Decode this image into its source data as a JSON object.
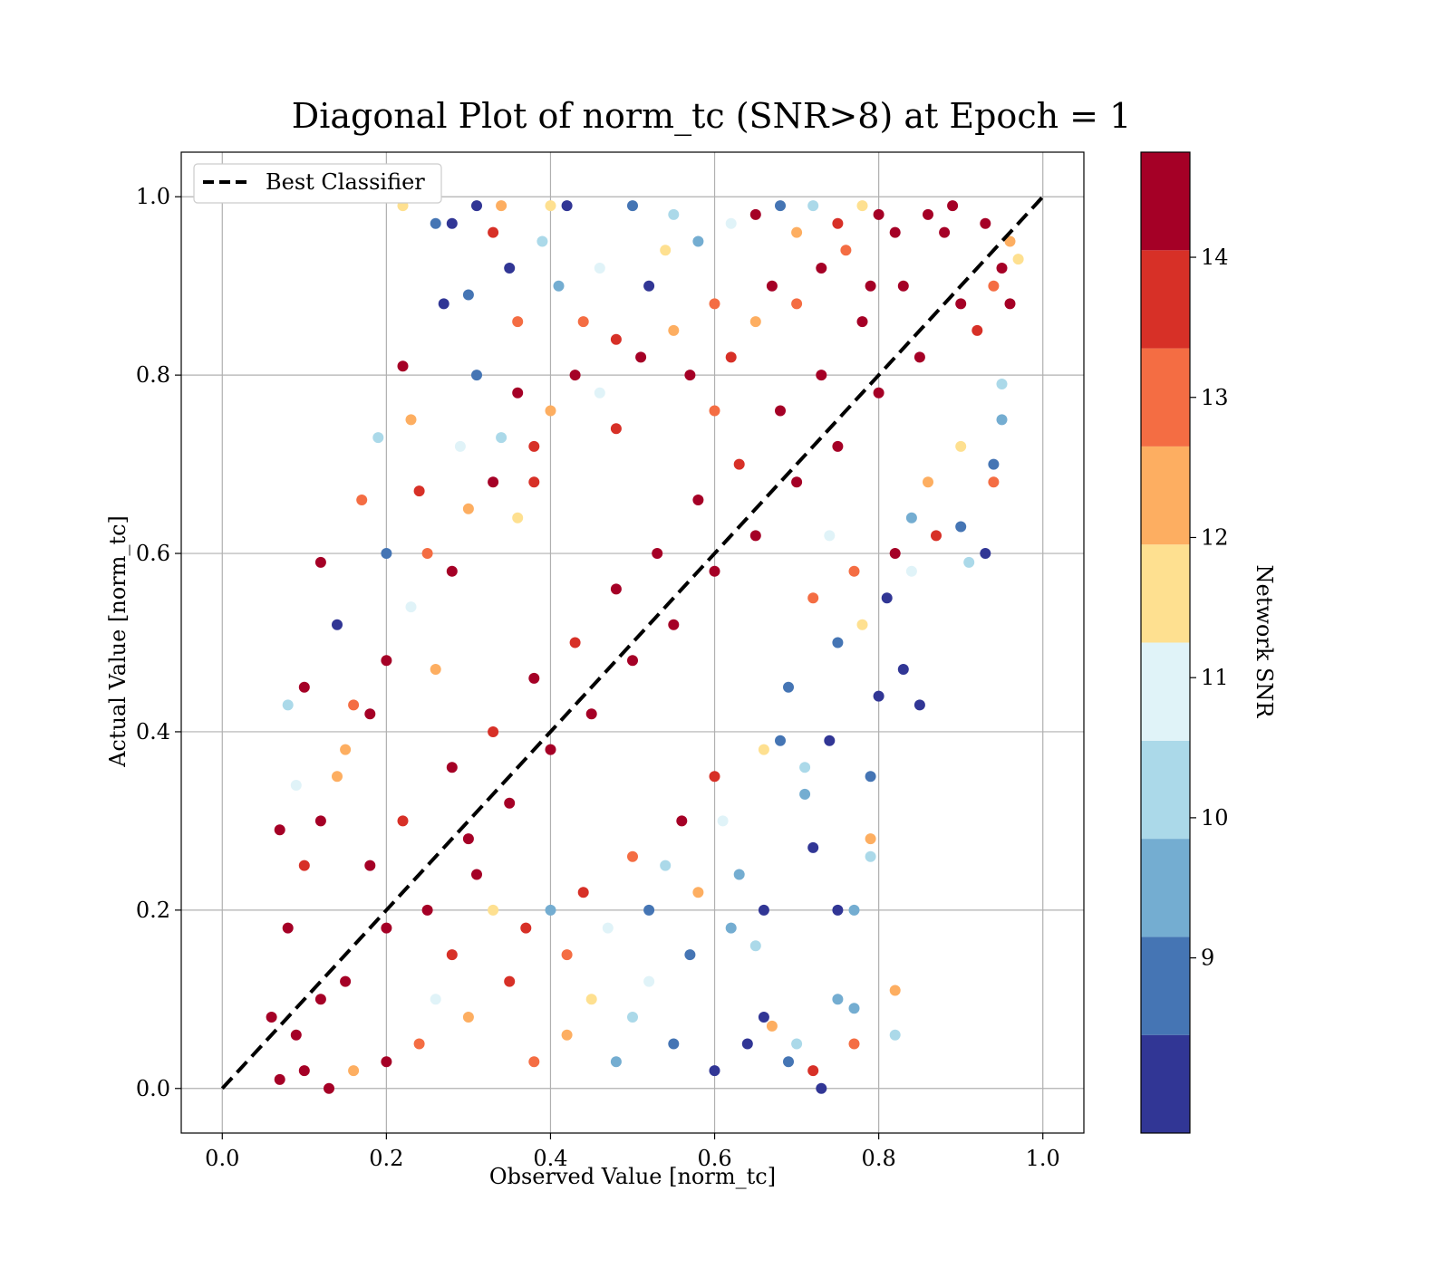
{
  "chart_data": {
    "type": "scatter",
    "title": "Diagonal Plot of norm_tc (SNR>8) at Epoch = 1",
    "xlabel": "Observed Value [norm_tc]",
    "ylabel": "Actual Value [norm_tc]",
    "xlim": [
      -0.05,
      1.05
    ],
    "ylim": [
      -0.05,
      1.05
    ],
    "xticks": [
      "0.0",
      "0.2",
      "0.4",
      "0.6",
      "0.8",
      "1.0"
    ],
    "yticks": [
      "0.0",
      "0.2",
      "0.4",
      "0.6",
      "0.8",
      "1.0"
    ],
    "xtick_values": [
      0,
      0.2,
      0.4,
      0.6,
      0.8,
      1.0
    ],
    "ytick_values": [
      0,
      0.2,
      0.4,
      0.6,
      0.8,
      1.0
    ],
    "grid": true,
    "legend": {
      "placement": "top-left",
      "entries": [
        "Best Classifier"
      ]
    },
    "reference_line": {
      "name": "Best Classifier",
      "x": [
        0,
        1
      ],
      "y": [
        0,
        1
      ],
      "style": "dashed",
      "color": "#000000"
    },
    "colorbar": {
      "label": "Network SNR",
      "range": [
        8,
        15
      ],
      "tick_labels": [
        "9",
        "10",
        "11",
        "12",
        "13",
        "14"
      ],
      "tick_values": [
        9.25,
        10.25,
        11.25,
        12.25,
        13.25,
        14.25
      ],
      "bands": [
        {
          "from": 8.0,
          "to": 8.7,
          "color": "#313695"
        },
        {
          "from": 8.7,
          "to": 9.4,
          "color": "#4575b4"
        },
        {
          "from": 9.4,
          "to": 10.1,
          "color": "#74add1"
        },
        {
          "from": 10.1,
          "to": 10.8,
          "color": "#abd9e9"
        },
        {
          "from": 10.8,
          "to": 11.5,
          "color": "#e0f3f8"
        },
        {
          "from": 11.5,
          "to": 12.2,
          "color": "#fee090"
        },
        {
          "from": 12.2,
          "to": 12.9,
          "color": "#fdae61"
        },
        {
          "from": 12.9,
          "to": 13.6,
          "color": "#f46d43"
        },
        {
          "from": 13.6,
          "to": 14.3,
          "color": "#d73027"
        },
        {
          "from": 14.3,
          "to": 15.0,
          "color": "#a50026"
        }
      ]
    },
    "points": [
      [
        0.1,
        0.02,
        14.8
      ],
      [
        0.12,
        0.1,
        14.6
      ],
      [
        0.09,
        0.06,
        14.9
      ],
      [
        0.15,
        0.12,
        14.7
      ],
      [
        0.2,
        0.18,
        14.8
      ],
      [
        0.18,
        0.25,
        14.5
      ],
      [
        0.25,
        0.2,
        14.9
      ],
      [
        0.22,
        0.3,
        14.0
      ],
      [
        0.3,
        0.28,
        14.8
      ],
      [
        0.28,
        0.36,
        14.6
      ],
      [
        0.35,
        0.32,
        14.9
      ],
      [
        0.33,
        0.4,
        14.2
      ],
      [
        0.4,
        0.38,
        14.8
      ],
      [
        0.38,
        0.46,
        14.7
      ],
      [
        0.45,
        0.42,
        14.9
      ],
      [
        0.43,
        0.5,
        13.9
      ],
      [
        0.5,
        0.48,
        14.8
      ],
      [
        0.48,
        0.56,
        14.6
      ],
      [
        0.55,
        0.52,
        14.9
      ],
      [
        0.53,
        0.6,
        14.4
      ],
      [
        0.6,
        0.58,
        14.8
      ],
      [
        0.58,
        0.66,
        14.7
      ],
      [
        0.65,
        0.62,
        14.9
      ],
      [
        0.63,
        0.7,
        14.1
      ],
      [
        0.7,
        0.68,
        14.8
      ],
      [
        0.68,
        0.76,
        14.6
      ],
      [
        0.75,
        0.72,
        14.9
      ],
      [
        0.73,
        0.8,
        14.3
      ],
      [
        0.8,
        0.78,
        14.8
      ],
      [
        0.78,
        0.86,
        14.7
      ],
      [
        0.85,
        0.82,
        14.9
      ],
      [
        0.83,
        0.9,
        14.5
      ],
      [
        0.9,
        0.88,
        14.8
      ],
      [
        0.88,
        0.96,
        14.6
      ],
      [
        0.93,
        0.97,
        14.9
      ],
      [
        0.95,
        0.92,
        14.7
      ],
      [
        0.96,
        0.95,
        12.3
      ],
      [
        0.97,
        0.93,
        11.8
      ],
      [
        0.94,
        0.9,
        13.2
      ],
      [
        0.92,
        0.85,
        14.0
      ],
      [
        0.12,
        0.59,
        14.8
      ],
      [
        0.1,
        0.45,
        14.6
      ],
      [
        0.08,
        0.43,
        10.4
      ],
      [
        0.07,
        0.29,
        14.9
      ],
      [
        0.09,
        0.34,
        10.8
      ],
      [
        0.19,
        0.73,
        10.3
      ],
      [
        0.22,
        0.81,
        14.8
      ],
      [
        0.23,
        0.75,
        12.5
      ],
      [
        0.27,
        0.88,
        8.3
      ],
      [
        0.3,
        0.89,
        9.0
      ],
      [
        0.31,
        0.99,
        8.4
      ],
      [
        0.33,
        0.96,
        13.7
      ],
      [
        0.34,
        0.99,
        12.8
      ],
      [
        0.28,
        0.97,
        8.5
      ],
      [
        0.26,
        0.97,
        9.1
      ],
      [
        0.39,
        0.95,
        10.6
      ],
      [
        0.4,
        0.99,
        11.6
      ],
      [
        0.35,
        0.92,
        8.5
      ],
      [
        0.36,
        0.86,
        13.4
      ],
      [
        0.42,
        0.99,
        8.2
      ],
      [
        0.5,
        0.99,
        9.0
      ],
      [
        0.55,
        0.98,
        10.4
      ],
      [
        0.22,
        0.99,
        11.8
      ],
      [
        0.18,
        0.42,
        14.9
      ],
      [
        0.14,
        0.52,
        8.4
      ],
      [
        0.15,
        0.38,
        12.6
      ],
      [
        0.2,
        0.6,
        9.2
      ],
      [
        0.17,
        0.66,
        13.0
      ],
      [
        0.24,
        0.67,
        14.2
      ],
      [
        0.26,
        0.47,
        12.3
      ],
      [
        0.31,
        0.8,
        9.3
      ],
      [
        0.29,
        0.72,
        11.0
      ],
      [
        0.36,
        0.78,
        14.8
      ],
      [
        0.34,
        0.73,
        10.2
      ],
      [
        0.38,
        0.68,
        13.8
      ],
      [
        0.41,
        0.9,
        9.7
      ],
      [
        0.44,
        0.86,
        12.9
      ],
      [
        0.46,
        0.92,
        10.9
      ],
      [
        0.48,
        0.84,
        14.1
      ],
      [
        0.52,
        0.9,
        8.6
      ],
      [
        0.54,
        0.94,
        12.1
      ],
      [
        0.58,
        0.95,
        9.9
      ],
      [
        0.6,
        0.88,
        13.3
      ],
      [
        0.62,
        0.97,
        11.2
      ],
      [
        0.65,
        0.98,
        14.7
      ],
      [
        0.68,
        0.99,
        8.9
      ],
      [
        0.7,
        0.96,
        12.7
      ],
      [
        0.72,
        0.99,
        10.1
      ],
      [
        0.75,
        0.97,
        13.6
      ],
      [
        0.78,
        0.99,
        11.9
      ],
      [
        0.8,
        0.98,
        14.3
      ],
      [
        0.6,
        0.02,
        8.3
      ],
      [
        0.55,
        0.05,
        9.1
      ],
      [
        0.5,
        0.08,
        10.4
      ],
      [
        0.45,
        0.1,
        11.6
      ],
      [
        0.42,
        0.06,
        12.5
      ],
      [
        0.38,
        0.03,
        13.2
      ],
      [
        0.35,
        0.12,
        14.0
      ],
      [
        0.3,
        0.08,
        12.8
      ],
      [
        0.28,
        0.15,
        13.6
      ],
      [
        0.48,
        0.03,
        9.8
      ],
      [
        0.52,
        0.12,
        10.9
      ],
      [
        0.57,
        0.15,
        8.7
      ],
      [
        0.62,
        0.18,
        9.5
      ],
      [
        0.66,
        0.08,
        8.4
      ],
      [
        0.7,
        0.05,
        10.2
      ],
      [
        0.73,
        0.0,
        8.6
      ],
      [
        0.75,
        0.1,
        9.4
      ],
      [
        0.77,
        0.09,
        10.0
      ],
      [
        0.82,
        0.06,
        10.6
      ],
      [
        0.82,
        0.11,
        12.6
      ],
      [
        0.77,
        0.05,
        13.4
      ],
      [
        0.72,
        0.02,
        14.1
      ],
      [
        0.69,
        0.03,
        9.0
      ],
      [
        0.64,
        0.05,
        8.5
      ],
      [
        0.67,
        0.07,
        12.7
      ],
      [
        0.85,
        0.43,
        8.4
      ],
      [
        0.83,
        0.47,
        8.5
      ],
      [
        0.8,
        0.44,
        8.2
      ],
      [
        0.79,
        0.35,
        9.3
      ],
      [
        0.79,
        0.28,
        12.4
      ],
      [
        0.79,
        0.26,
        10.4
      ],
      [
        0.75,
        0.2,
        8.5
      ],
      [
        0.77,
        0.2,
        10.0
      ],
      [
        0.72,
        0.27,
        8.3
      ],
      [
        0.71,
        0.33,
        9.4
      ],
      [
        0.74,
        0.39,
        8.4
      ],
      [
        0.71,
        0.36,
        10.5
      ],
      [
        0.68,
        0.39,
        9.3
      ],
      [
        0.66,
        0.38,
        12.0
      ],
      [
        0.69,
        0.45,
        8.7
      ],
      [
        0.72,
        0.55,
        13.1
      ],
      [
        0.75,
        0.5,
        9.1
      ],
      [
        0.78,
        0.52,
        11.7
      ],
      [
        0.81,
        0.55,
        8.6
      ],
      [
        0.84,
        0.58,
        10.9
      ],
      [
        0.87,
        0.62,
        13.8
      ],
      [
        0.9,
        0.63,
        9.2
      ],
      [
        0.93,
        0.6,
        8.3
      ],
      [
        0.91,
        0.59,
        10.2
      ],
      [
        0.94,
        0.7,
        8.7
      ],
      [
        0.95,
        0.75,
        9.6
      ],
      [
        0.95,
        0.79,
        10.5
      ],
      [
        0.96,
        0.88,
        14.9
      ],
      [
        0.94,
        0.68,
        12.9
      ],
      [
        0.9,
        0.72,
        11.5
      ],
      [
        0.86,
        0.68,
        12.4
      ],
      [
        0.84,
        0.64,
        9.8
      ],
      [
        0.82,
        0.6,
        14.5
      ],
      [
        0.77,
        0.58,
        13.0
      ],
      [
        0.74,
        0.62,
        10.8
      ],
      [
        0.66,
        0.2,
        8.4
      ],
      [
        0.65,
        0.16,
        10.1
      ],
      [
        0.63,
        0.24,
        9.6
      ],
      [
        0.61,
        0.3,
        11.3
      ],
      [
        0.6,
        0.35,
        13.7
      ],
      [
        0.58,
        0.22,
        12.2
      ],
      [
        0.56,
        0.3,
        14.4
      ],
      [
        0.54,
        0.25,
        10.7
      ],
      [
        0.52,
        0.2,
        9.3
      ],
      [
        0.5,
        0.26,
        13.5
      ],
      [
        0.47,
        0.18,
        11.0
      ],
      [
        0.44,
        0.22,
        14.2
      ],
      [
        0.42,
        0.15,
        12.9
      ],
      [
        0.4,
        0.2,
        9.8
      ],
      [
        0.37,
        0.18,
        13.9
      ],
      [
        0.33,
        0.2,
        12.1
      ],
      [
        0.31,
        0.24,
        14.6
      ],
      [
        0.26,
        0.1,
        11.4
      ],
      [
        0.24,
        0.05,
        13.1
      ],
      [
        0.2,
        0.03,
        14.3
      ],
      [
        0.16,
        0.02,
        12.6
      ],
      [
        0.13,
        0.0,
        14.8
      ],
      [
        0.07,
        0.01,
        14.7
      ],
      [
        0.06,
        0.08,
        14.9
      ],
      [
        0.08,
        0.18,
        14.5
      ],
      [
        0.1,
        0.25,
        13.8
      ],
      [
        0.12,
        0.3,
        14.7
      ],
      [
        0.14,
        0.35,
        12.2
      ],
      [
        0.16,
        0.43,
        13.4
      ],
      [
        0.2,
        0.48,
        14.9
      ],
      [
        0.23,
        0.54,
        11.1
      ],
      [
        0.25,
        0.6,
        13.0
      ],
      [
        0.28,
        0.58,
        14.4
      ],
      [
        0.3,
        0.65,
        12.6
      ],
      [
        0.33,
        0.68,
        14.9
      ],
      [
        0.36,
        0.64,
        11.7
      ],
      [
        0.38,
        0.72,
        14.1
      ],
      [
        0.4,
        0.76,
        12.4
      ],
      [
        0.43,
        0.8,
        14.8
      ],
      [
        0.46,
        0.78,
        11.2
      ],
      [
        0.48,
        0.74,
        13.9
      ],
      [
        0.51,
        0.82,
        14.6
      ],
      [
        0.55,
        0.85,
        12.8
      ],
      [
        0.57,
        0.8,
        14.9
      ],
      [
        0.6,
        0.76,
        13.5
      ],
      [
        0.62,
        0.82,
        14.2
      ],
      [
        0.65,
        0.86,
        12.5
      ],
      [
        0.67,
        0.9,
        14.8
      ],
      [
        0.7,
        0.88,
        13.3
      ],
      [
        0.73,
        0.92,
        14.6
      ],
      [
        0.76,
        0.94,
        12.9
      ],
      [
        0.79,
        0.9,
        14.9
      ],
      [
        0.82,
        0.96,
        14.4
      ],
      [
        0.86,
        0.98,
        14.8
      ],
      [
        0.89,
        0.99,
        14.7
      ]
    ]
  }
}
